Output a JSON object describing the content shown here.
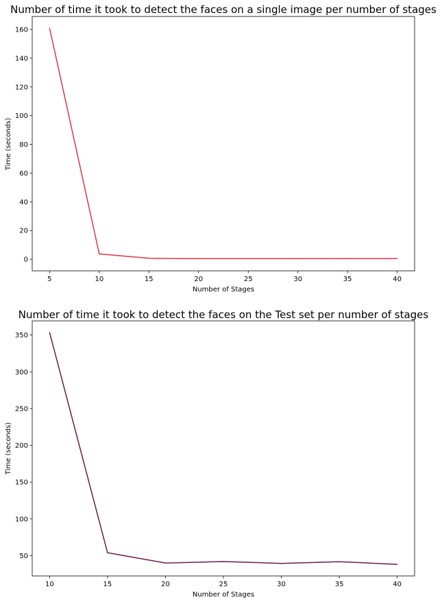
{
  "chart_data": [
    {
      "type": "line",
      "title": "Number of time it took to detect the faces on a single image per number of stages",
      "xlabel": "Number of Stages",
      "ylabel": "Time (seconds)",
      "x": [
        5,
        10,
        15,
        20,
        25,
        30,
        35,
        40
      ],
      "series": [
        {
          "values": [
            161,
            3.7,
            0.7,
            0.4,
            0.4,
            0.4,
            0.5,
            0.5
          ],
          "color": "#dc3545"
        }
      ],
      "xlim": [
        3.25,
        41.75
      ],
      "ylim": [
        -8.05,
        169.05
      ],
      "xticks": [
        5,
        10,
        15,
        20,
        25,
        30,
        35,
        40
      ],
      "yticks": [
        0,
        20,
        40,
        60,
        80,
        100,
        120,
        140,
        160
      ],
      "grid": false
    },
    {
      "type": "line",
      "title": "Number of time it took to detect the faces on the Test set per number of stages",
      "xlabel": "Number of Stages",
      "ylabel": "Time (seconds)",
      "x": [
        10,
        15,
        20,
        25,
        30,
        35,
        40
      ],
      "series": [
        {
          "values": [
            353.5,
            54,
            40,
            42,
            39.5,
            41.8,
            38.2
          ],
          "color": "#6a1b4d"
        }
      ],
      "xlim": [
        8.5,
        41.5
      ],
      "ylim": [
        22.43,
        369.27
      ],
      "xticks": [
        10,
        15,
        20,
        25,
        30,
        35,
        40
      ],
      "yticks": [
        50,
        100,
        150,
        200,
        250,
        300,
        350
      ],
      "grid": false
    }
  ]
}
